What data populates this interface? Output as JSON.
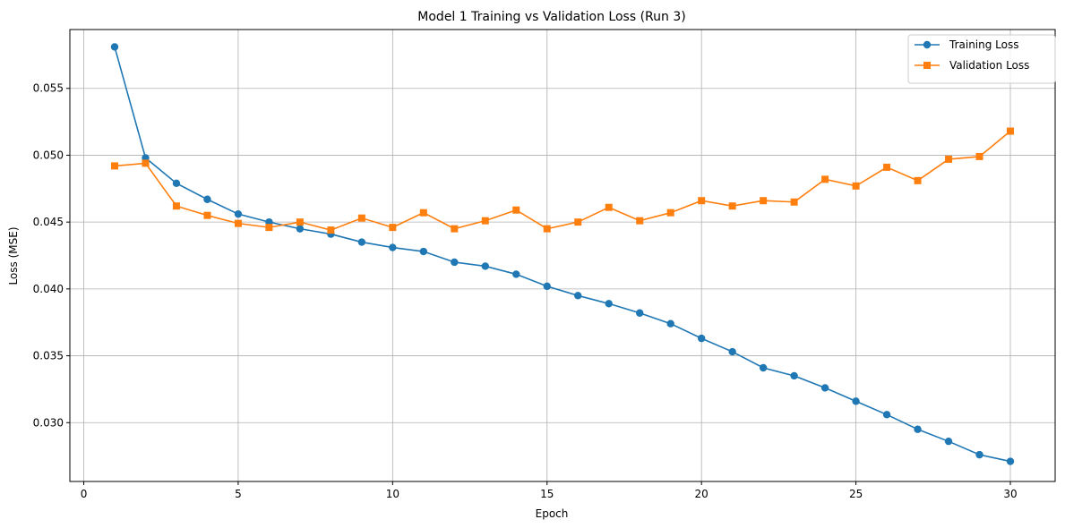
{
  "chart_data": {
    "type": "line",
    "title": "Model 1 Training vs Validation Loss (Run 3)",
    "xlabel": "Epoch",
    "ylabel": "Loss (MSE)",
    "xlim": [
      -0.45,
      31.45
    ],
    "ylim": [
      0.0256,
      0.0594
    ],
    "xticks": [
      0,
      5,
      10,
      15,
      20,
      25,
      30
    ],
    "yticks": [
      0.03,
      0.035,
      0.04,
      0.045,
      0.05,
      0.055
    ],
    "ytick_labels": [
      "0.030",
      "0.035",
      "0.040",
      "0.045",
      "0.050",
      "0.055"
    ],
    "grid": true,
    "legend_position": "top-right",
    "x": [
      1,
      2,
      3,
      4,
      5,
      6,
      7,
      8,
      9,
      10,
      11,
      12,
      13,
      14,
      15,
      16,
      17,
      18,
      19,
      20,
      21,
      22,
      23,
      24,
      25,
      26,
      27,
      28,
      29,
      30
    ],
    "series": [
      {
        "name": "Training Loss",
        "color": "#1f77b4",
        "marker": "circle",
        "values": [
          0.0581,
          0.0498,
          0.0479,
          0.0467,
          0.0456,
          0.045,
          0.0445,
          0.0441,
          0.0435,
          0.0431,
          0.0428,
          0.042,
          0.0417,
          0.0411,
          0.0402,
          0.0395,
          0.0389,
          0.0382,
          0.0374,
          0.0363,
          0.0353,
          0.0341,
          0.0335,
          0.0326,
          0.0316,
          0.0306,
          0.0295,
          0.0286,
          0.0276,
          0.0271
        ]
      },
      {
        "name": "Validation Loss",
        "color": "#ff7f0e",
        "marker": "square",
        "values": [
          0.0492,
          0.0494,
          0.0462,
          0.0455,
          0.0449,
          0.0446,
          0.045,
          0.0444,
          0.0453,
          0.0446,
          0.0457,
          0.0445,
          0.0451,
          0.0459,
          0.0445,
          0.045,
          0.0461,
          0.0451,
          0.0457,
          0.0466,
          0.0462,
          0.0466,
          0.0465,
          0.0482,
          0.0477,
          0.0491,
          0.0481,
          0.0497,
          0.0499,
          0.0518
        ]
      }
    ]
  }
}
